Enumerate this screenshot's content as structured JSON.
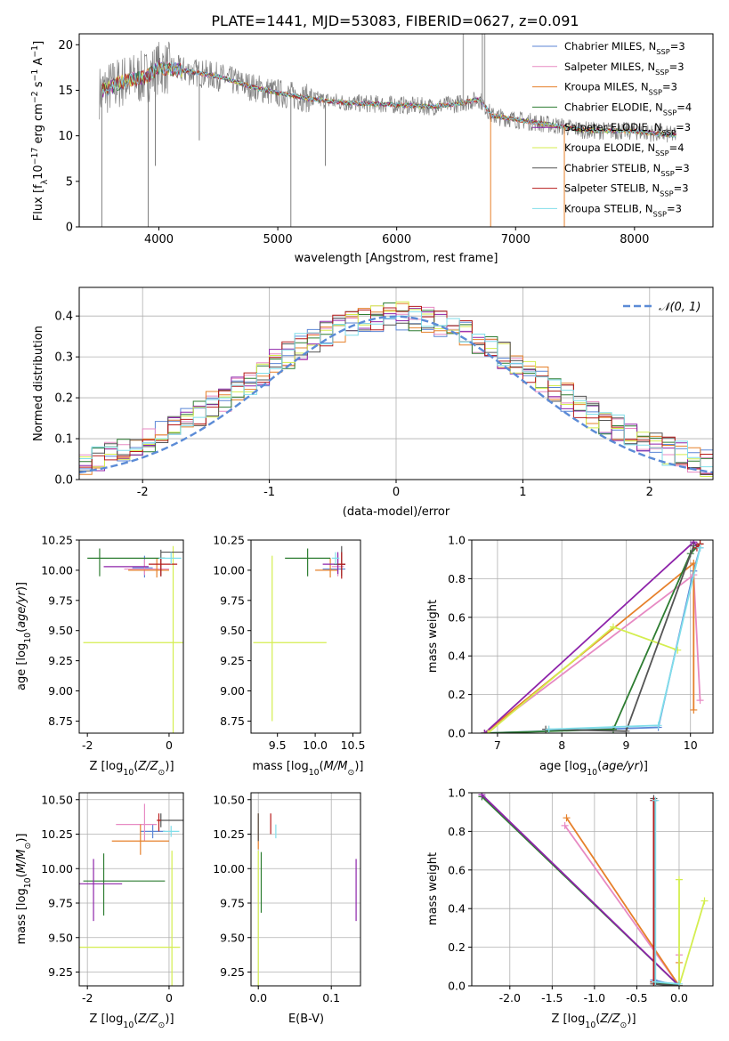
{
  "figure": {
    "title": "PLATE=1441, MJD=53083, FIBERID=0627, z=0.091"
  },
  "colors": {
    "chabrier_miles": "#5b86d6",
    "salpeter_miles": "#e78ac3",
    "kroupa_miles": "#e6802a",
    "chabrier_elodie": "#2e7d32",
    "salpeter_elodie": "#8e24aa",
    "kroupa_elodie": "#d4ee4f",
    "chabrier_stelib": "#555555",
    "salpeter_stelib": "#b71c1c",
    "kroupa_stelib": "#80deea",
    "data_gray": "#7f7f7f",
    "normal_curve": "#5b8bd6"
  },
  "chart_data": [
    {
      "id": "spectrum",
      "type": "line",
      "xlabel": "wavelength [Angstrom, rest frame]",
      "ylabel": "Flux [f_λ10^-17 erg cm^-2 s^-1 A^-1]",
      "xlim": [
        3330,
        8660
      ],
      "ylim": [
        0,
        21.2
      ],
      "xticks": [
        4000,
        5000,
        6000,
        7000,
        8000
      ],
      "yticks": [
        0,
        5,
        10,
        15,
        20
      ],
      "legend_position": "top-right",
      "legend": [
        {
          "base": "Chabrier MILES, N",
          "sub": "SSP",
          "tail": "=3",
          "color_key": "chabrier_miles"
        },
        {
          "base": "Salpeter MILES, N",
          "sub": "SSP",
          "tail": "=3",
          "color_key": "salpeter_miles"
        },
        {
          "base": "Kroupa MILES, N",
          "sub": "SSP",
          "tail": "=3",
          "color_key": "kroupa_miles"
        },
        {
          "base": "Chabrier ELODIE, N",
          "sub": "SSP",
          "tail": "=4",
          "color_key": "chabrier_elodie"
        },
        {
          "base": "Salpeter ELODIE, N",
          "sub": "SSP",
          "tail": "=3",
          "color_key": "salpeter_elodie"
        },
        {
          "base": "Kroupa ELODIE, N",
          "sub": "SSP",
          "tail": "=4",
          "color_key": "kroupa_elodie"
        },
        {
          "base": "Chabrier STELIB, N",
          "sub": "SSP",
          "tail": "=3",
          "color_key": "chabrier_stelib"
        },
        {
          "base": "Salpeter STELIB, N",
          "sub": "SSP",
          "tail": "=3",
          "color_key": "salpeter_stelib"
        },
        {
          "base": "Kroupa STELIB, N",
          "sub": "SSP",
          "tail": "=3",
          "color_key": "kroupa_stelib"
        }
      ],
      "continuum": {
        "x": [
          3500,
          3700,
          3900,
          4000,
          4200,
          4500,
          4800,
          5000,
          5300,
          5600,
          6000,
          6300,
          6500,
          6700,
          6800,
          7000,
          7300,
          7600,
          8000,
          8300
        ],
        "y": [
          14.8,
          16.0,
          16.5,
          17.5,
          17.2,
          16.5,
          15.3,
          14.7,
          14.0,
          13.6,
          13.4,
          13.2,
          13.5,
          14.0,
          12.2,
          11.8,
          11.2,
          10.6,
          10.5,
          10.1
        ]
      },
      "spikes_down": [
        {
          "x": 3520,
          "y": 0
        },
        {
          "x": 3910,
          "y": 0
        },
        {
          "x": 5110,
          "y": 0
        },
        {
          "x": 6790,
          "y": 0
        },
        {
          "x": 7410,
          "y": 0
        },
        {
          "x": 4340,
          "y": 9.5
        },
        {
          "x": 3970,
          "y": 6.7
        },
        {
          "x": 5400,
          "y": 6.7
        }
      ],
      "spikes_up": [
        {
          "x": 6560,
          "y": 21.2
        },
        {
          "x": 6720,
          "y": 21.2
        },
        {
          "x": 6740,
          "y": 21.2
        }
      ]
    },
    {
      "id": "residuals",
      "type": "bar",
      "xlabel": "(data-model)/error",
      "ylabel": "Normed distribution",
      "xlim": [
        -2.5,
        2.5
      ],
      "ylim": [
        0,
        0.47
      ],
      "xticks": [
        -2,
        -1,
        0,
        1,
        2
      ],
      "yticks": [
        0.0,
        0.1,
        0.2,
        0.3,
        0.4
      ],
      "bin_width": 0.1,
      "legend": "𝒩(0, 1)",
      "legend_position": "top-right"
    },
    {
      "id": "age_vs_z",
      "type": "scatter",
      "xlabel": "Z [log10(Z/Z⊙)]",
      "ylabel": "age [log10(age/yr)]",
      "xlim": [
        -2.2,
        0.35
      ],
      "ylim": [
        8.65,
        10.25
      ],
      "xticks": [
        -2,
        0
      ],
      "yticks": [
        8.75,
        9.0,
        9.25,
        9.5,
        9.75,
        10.0,
        10.25
      ]
    },
    {
      "id": "age_vs_mass",
      "type": "scatter",
      "xlabel": "mass [log10(M/M⊙)]",
      "xlim": [
        9.15,
        10.6
      ],
      "ylim": [
        8.65,
        10.25
      ],
      "xticks": [
        9.5,
        10.0,
        10.5
      ],
      "yticks": [
        8.75,
        9.0,
        9.25,
        9.5,
        9.75,
        10.0,
        10.25
      ]
    },
    {
      "id": "weight_vs_age",
      "type": "line",
      "xlabel": "age [log10(age/yr)]",
      "ylabel": "mass weight",
      "xlim": [
        6.6,
        10.35
      ],
      "ylim": [
        0,
        1.0
      ],
      "xticks": [
        7,
        8,
        9,
        10
      ],
      "yticks": [
        0.0,
        0.2,
        0.4,
        0.6,
        0.8,
        1.0
      ],
      "series": [
        {
          "color_key": "chabrier_miles",
          "x": [
            6.8,
            9.5,
            10.05,
            10.15
          ],
          "y": [
            0.0,
            0.03,
            0.84,
            0.96
          ]
        },
        {
          "color_key": "salpeter_miles",
          "x": [
            6.8,
            10.05,
            10.15
          ],
          "y": [
            0.0,
            0.82,
            0.17
          ]
        },
        {
          "color_key": "kroupa_miles",
          "x": [
            6.8,
            10.05,
            10.05
          ],
          "y": [
            0.0,
            0.88,
            0.12
          ]
        },
        {
          "color_key": "chabrier_elodie",
          "x": [
            6.8,
            8.8,
            10.0,
            10.15
          ],
          "y": [
            0.0,
            0.02,
            0.93,
            0.98
          ]
        },
        {
          "color_key": "salpeter_elodie",
          "x": [
            6.8,
            10.05,
            10.1
          ],
          "y": [
            0.0,
            0.99,
            0.97
          ]
        },
        {
          "color_key": "kroupa_elodie",
          "x": [
            6.85,
            8.8,
            9.8
          ],
          "y": [
            0.0,
            0.55,
            0.43
          ]
        },
        {
          "color_key": "chabrier_stelib",
          "x": [
            7.75,
            9.0,
            10.05
          ],
          "y": [
            0.02,
            0.01,
            0.97
          ]
        },
        {
          "color_key": "salpeter_stelib",
          "x": [
            10.1,
            10.15
          ],
          "y": [
            0.96,
            0.98
          ]
        },
        {
          "color_key": "kroupa_stelib",
          "x": [
            7.8,
            9.5,
            10.15
          ],
          "y": [
            0.02,
            0.04,
            0.96
          ]
        }
      ]
    },
    {
      "id": "mass_vs_z",
      "type": "scatter",
      "xlabel": "Z [log10(Z/Z⊙)]",
      "ylabel": "mass [log10(M/M⊙)]",
      "xlim": [
        -2.2,
        0.35
      ],
      "ylim": [
        9.15,
        10.55
      ],
      "xticks": [
        -2,
        0
      ],
      "yticks": [
        9.25,
        9.5,
        9.75,
        10.0,
        10.25,
        10.5
      ]
    },
    {
      "id": "mass_vs_ebv",
      "type": "scatter",
      "xlabel": "E(B-V)",
      "xlim": [
        -0.01,
        0.14
      ],
      "ylim": [
        9.15,
        10.55
      ],
      "xticks": [
        0.0,
        0.1
      ],
      "yticks": [
        9.25,
        9.5,
        9.75,
        10.0,
        10.25,
        10.5
      ]
    },
    {
      "id": "weight_vs_z",
      "type": "line",
      "xlabel": "Z [log10(Z/Z⊙)]",
      "ylabel": "mass weight",
      "xlim": [
        -2.45,
        0.4
      ],
      "ylim": [
        0,
        1.0
      ],
      "xticks": [
        -2.0,
        -1.5,
        -1.0,
        -0.5,
        0.0
      ],
      "yticks": [
        0.0,
        0.2,
        0.4,
        0.6,
        0.8,
        1.0
      ],
      "series": [
        {
          "color_key": "chabrier_miles",
          "x": [
            -0.3,
            -0.3,
            0.0
          ],
          "y": [
            0.96,
            0.03,
            0.0
          ]
        },
        {
          "color_key": "salpeter_miles",
          "x": [
            -1.35,
            0.0,
            0.0
          ],
          "y": [
            0.83,
            0.0,
            0.16
          ]
        },
        {
          "color_key": "kroupa_miles",
          "x": [
            -1.33,
            0.0,
            0.0
          ],
          "y": [
            0.87,
            0.0,
            0.12
          ]
        },
        {
          "color_key": "chabrier_elodie",
          "x": [
            -2.33,
            0.0,
            -0.3
          ],
          "y": [
            0.98,
            0.0,
            0.02
          ]
        },
        {
          "color_key": "salpeter_elodie",
          "x": [
            -2.33,
            0.0
          ],
          "y": [
            0.99,
            0.0
          ]
        },
        {
          "color_key": "kroupa_elodie",
          "x": [
            0.0,
            0.0,
            0.3
          ],
          "y": [
            0.55,
            0.0,
            0.44
          ]
        },
        {
          "color_key": "chabrier_stelib",
          "x": [
            -0.3,
            -0.3,
            0.0
          ],
          "y": [
            0.97,
            0.01,
            0.0
          ]
        },
        {
          "color_key": "salpeter_stelib",
          "x": [
            -0.3,
            -0.3
          ],
          "y": [
            0.96,
            0.02
          ]
        },
        {
          "color_key": "kroupa_stelib",
          "x": [
            -0.28,
            -0.28,
            0.0
          ],
          "y": [
            0.96,
            0.02,
            0.01
          ]
        }
      ]
    }
  ]
}
